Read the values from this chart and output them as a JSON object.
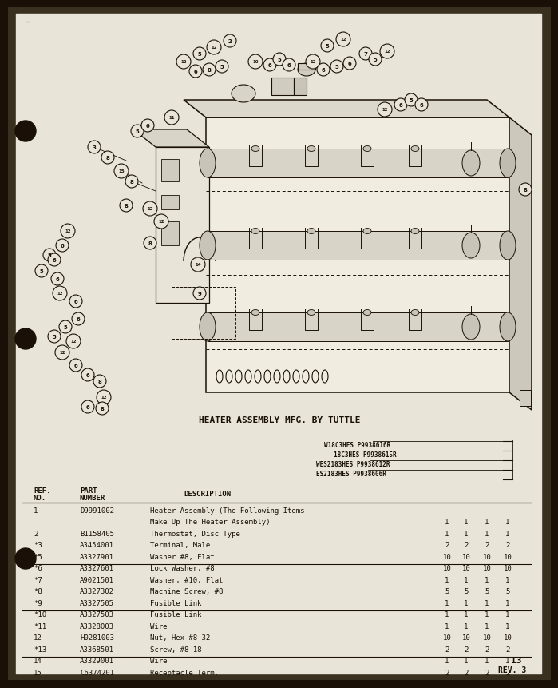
{
  "diagram_caption": "HEATER ASSEMBLY MFG. BY TUTTLE",
  "header_models": [
    "W18C3HES P9938616R",
    "18C3HES P9938615R",
    "WES2183HES P9938612R",
    "ES2183HES P9938606R"
  ],
  "page_number": "13",
  "rev": "REV. 3",
  "paper_color": "#e8e4d8",
  "border_color": "#2a2015",
  "ink_color": "#1a1008",
  "table_rows": [
    {
      "ref": "1",
      "part": "D9991002",
      "desc": "Heater Assembly (The Following Items",
      "qty": null,
      "ul": false
    },
    {
      "ref": "",
      "part": "",
      "desc": "Make Up The Heater Assembly)",
      "qty": [
        "1",
        "1",
        "1",
        "1"
      ],
      "ul": false
    },
    {
      "ref": "2",
      "part": "B1158405",
      "desc": "Thermostat, Disc Type",
      "qty": [
        "1",
        "1",
        "1",
        "1"
      ],
      "ul": false
    },
    {
      "ref": "*3",
      "part": "A3454001",
      "desc": "Terminal, Male",
      "qty": [
        "2",
        "2",
        "2",
        "2"
      ],
      "ul": false
    },
    {
      "ref": "*5",
      "part": "A3327901",
      "desc": "Washer #8, Flat",
      "qty": [
        "10",
        "10",
        "10",
        "10"
      ],
      "ul": true
    },
    {
      "ref": "*6",
      "part": "A3327601",
      "desc": "Lock Washer, #8",
      "qty": [
        "10",
        "10",
        "10",
        "10"
      ],
      "ul": false
    },
    {
      "ref": "*7",
      "part": "A9021501",
      "desc": "Washer, #10, Flat",
      "qty": [
        "1",
        "1",
        "1",
        "1"
      ],
      "ul": false
    },
    {
      "ref": "*8",
      "part": "A3327302",
      "desc": "Machine Screw, #8",
      "qty": [
        "5",
        "5",
        "5",
        "5"
      ],
      "ul": false
    },
    {
      "ref": "*9",
      "part": "A3327505",
      "desc": "Fusible Link",
      "qty": [
        "1",
        "1",
        "1",
        "1"
      ],
      "ul": true
    },
    {
      "ref": "*10",
      "part": "A3327503",
      "desc": "Fusible Link",
      "qty": [
        "1",
        "1",
        "1",
        "1"
      ],
      "ul": false
    },
    {
      "ref": "*11",
      "part": "A3328003",
      "desc": "Wire",
      "qty": [
        "1",
        "1",
        "1",
        "1"
      ],
      "ul": false
    },
    {
      "ref": "12",
      "part": "H0281003",
      "desc": "Nut, Hex #8-32",
      "qty": [
        "10",
        "10",
        "10",
        "10"
      ],
      "ul": false
    },
    {
      "ref": "*13",
      "part": "A3368501",
      "desc": "Screw, #8-18",
      "qty": [
        "2",
        "2",
        "2",
        "2"
      ],
      "ul": true
    },
    {
      "ref": "14",
      "part": "A3329001",
      "desc": "Wire",
      "qty": [
        "1",
        "1",
        "1",
        "1"
      ],
      "ul": false
    },
    {
      "ref": "15",
      "part": "C6374201",
      "desc": "Receptacle Term.",
      "qty": [
        "2",
        "2",
        "2",
        "2"
      ],
      "ul": false
    }
  ]
}
